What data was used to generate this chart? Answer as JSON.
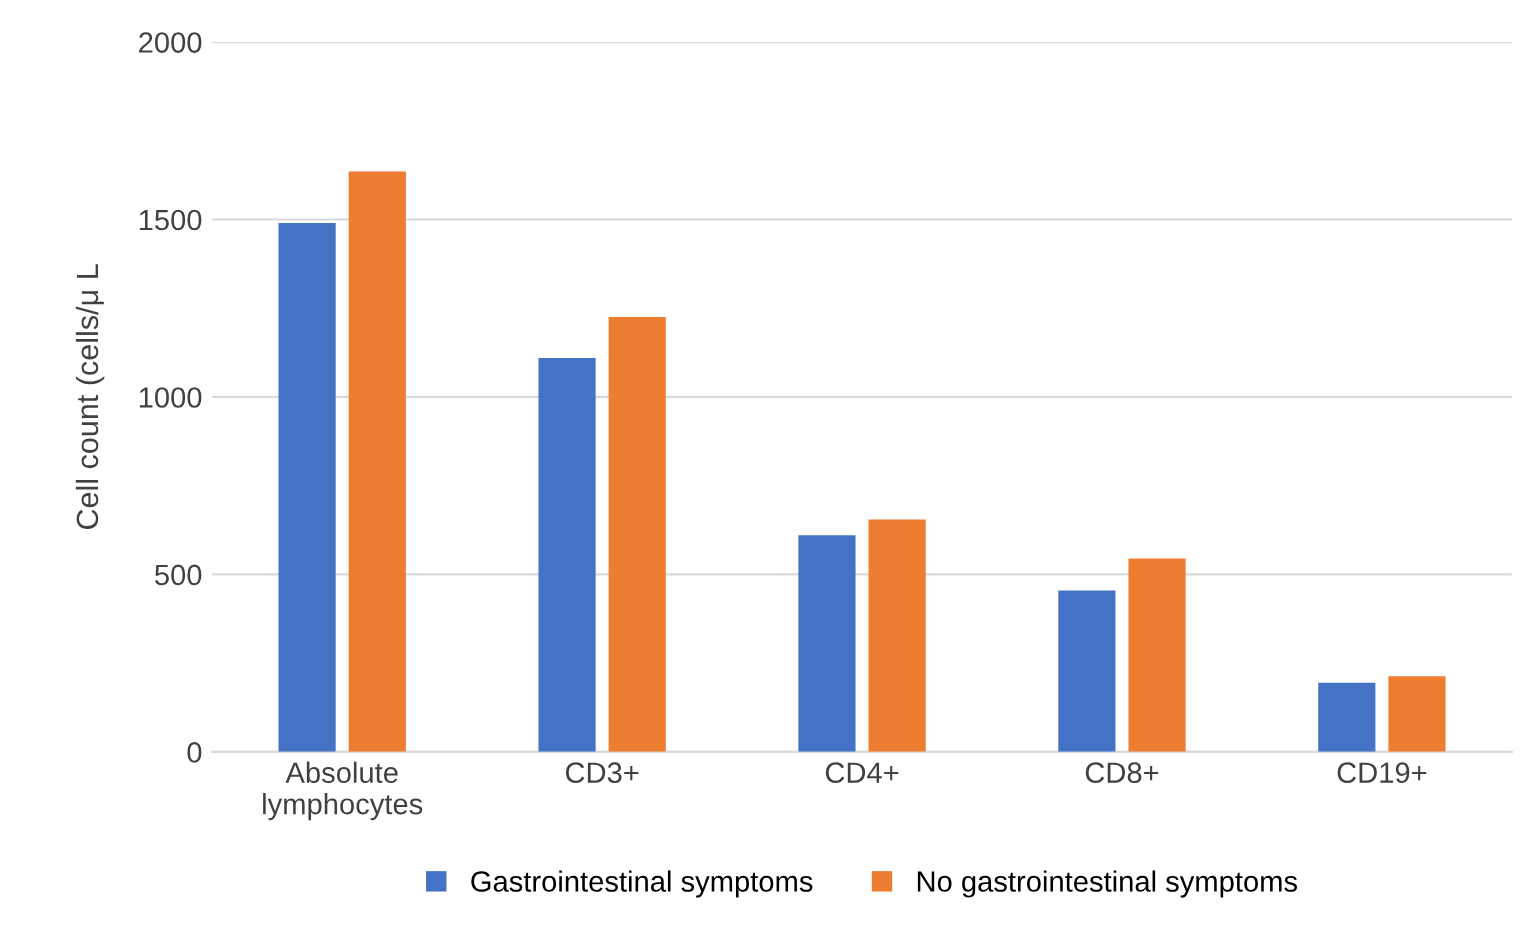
{
  "chart_data": {
    "type": "bar",
    "ylabel": "Cell count (cells/μ L",
    "categories": [
      "Absolute\nlymphocytes",
      "CD3+",
      "CD4+",
      "CD8+",
      "CD19+"
    ],
    "series": [
      {
        "name": "Gastrointestinal symptoms",
        "color": "#4472c4",
        "values": [
          1490,
          1110,
          610,
          455,
          195
        ]
      },
      {
        "name": "No gastrointestinal symptoms",
        "color": "#ed7d31",
        "values": [
          1635,
          1225,
          655,
          545,
          213
        ]
      }
    ],
    "ylim": [
      0,
      2000
    ],
    "yticks": [
      0,
      500,
      1000,
      1500,
      2000
    ],
    "grid": "y",
    "legend": "bottom"
  }
}
